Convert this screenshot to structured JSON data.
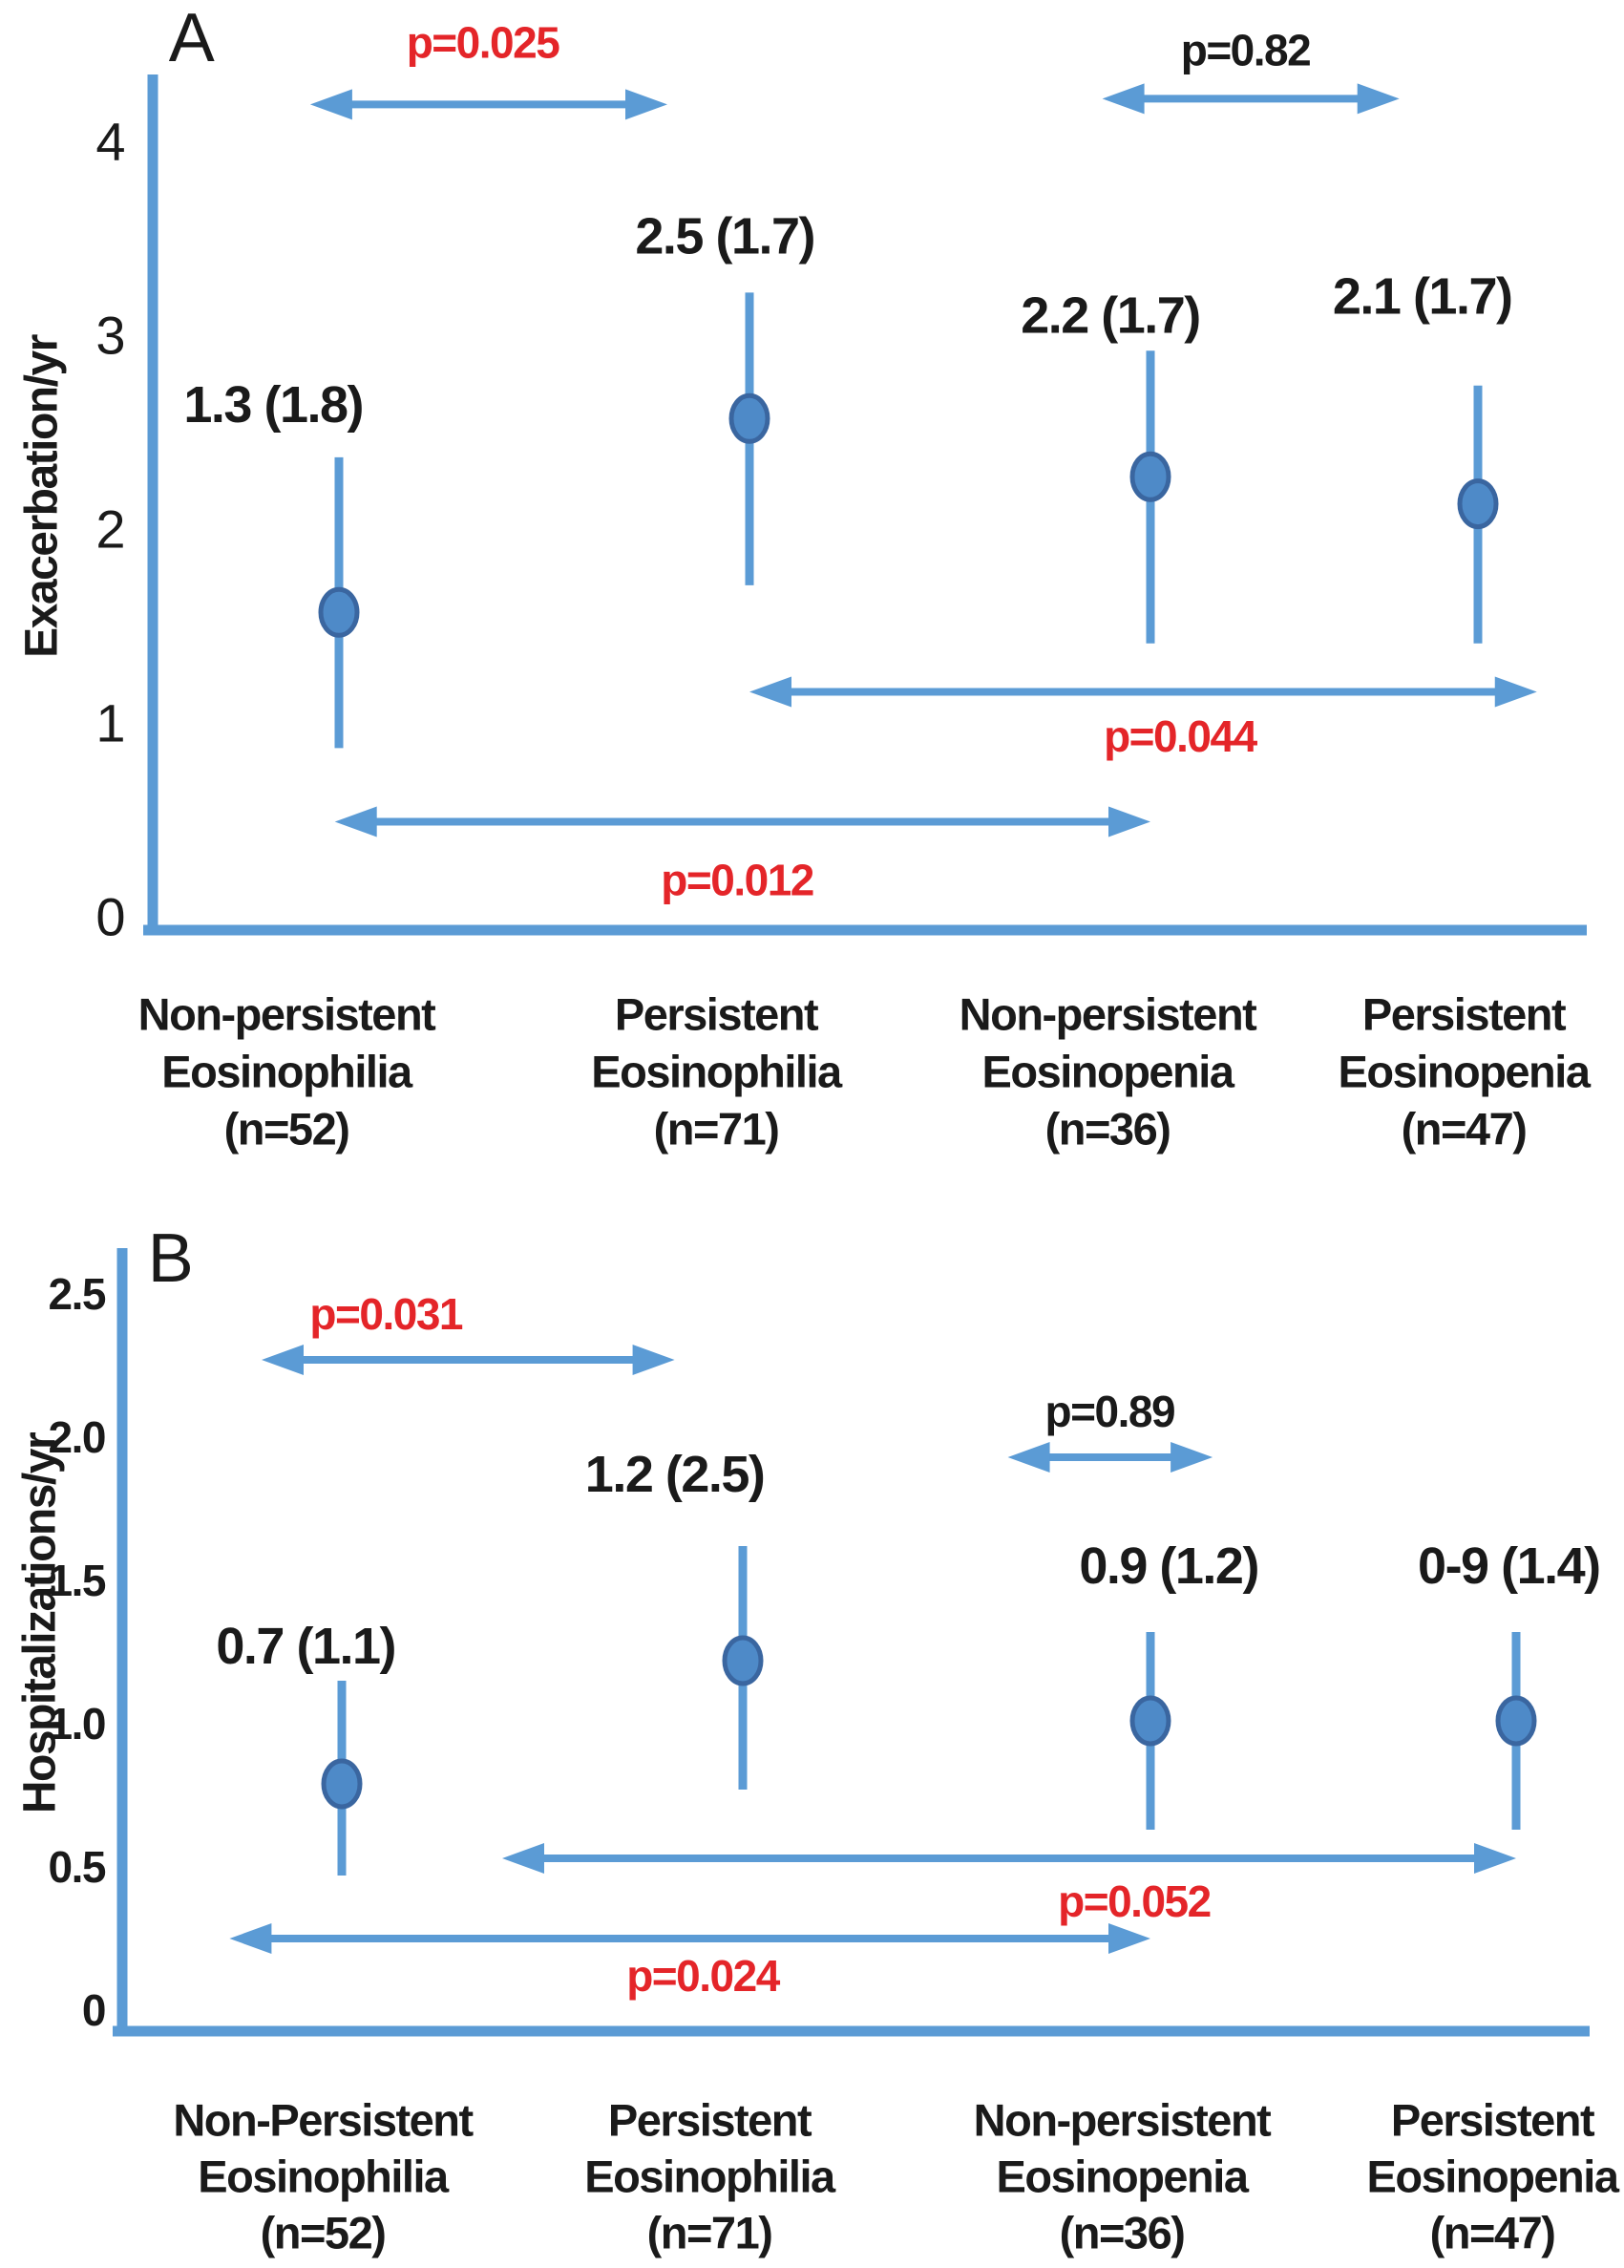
{
  "figure": {
    "background": "#ffffff",
    "colors": {
      "line_blue": "#5b9bd5",
      "marker_fill": "#4e8ac8",
      "marker_stroke": "#3a66a0",
      "significant_p": "#e42529",
      "nonsignificant_p": "#1a1a1a",
      "text": "#1a1a1a"
    }
  },
  "chart_data": [
    {
      "type": "scatter",
      "panel_label": "A",
      "ylabel": "Exacerbation/yr",
      "ylim": [
        0,
        4.35
      ],
      "grid": false,
      "legend": null,
      "yticks": [
        {
          "label": "0",
          "value": 0
        },
        {
          "label": "1",
          "value": 1
        },
        {
          "label": "2",
          "value": 2
        },
        {
          "label": "3",
          "value": 3
        },
        {
          "label": "4",
          "value": 4
        }
      ],
      "categories": [
        {
          "lines": [
            "Non-persistent",
            "Eosinophilia",
            "(n=52)"
          ]
        },
        {
          "lines": [
            "Persistent",
            "Eosinophilia",
            "(n=71)"
          ]
        },
        {
          "lines": [
            "Non-persistent",
            "Eosinopenia",
            "(n=36)"
          ]
        },
        {
          "lines": [
            "Persistent",
            "Eosinopenia",
            "(n=47)"
          ]
        }
      ],
      "points": [
        {
          "label": "1.3 (1.8)",
          "mean": 1.3,
          "sd": 1.8,
          "plot": {
            "y": 1.57,
            "lo": 0.87,
            "hi": 2.37
          },
          "label_at": {
            "x": -0.16,
            "y": 2.64
          }
        },
        {
          "label": "2.5 (1.7)",
          "mean": 2.5,
          "sd": 1.7,
          "plot": {
            "y": 2.57,
            "lo": 1.71,
            "hi": 3.22
          },
          "label_at": {
            "x": 0.94,
            "y": 3.51
          }
        },
        {
          "label": "2.2 (1.7)",
          "mean": 2.2,
          "sd": 1.7,
          "plot": {
            "y": 2.27,
            "lo": 1.41,
            "hi": 2.92
          },
          "label_at": {
            "x": 1.9,
            "y": 3.1
          }
        },
        {
          "label": "2.1 (1.7)",
          "mean": 2.1,
          "sd": 1.7,
          "plot": {
            "y": 2.13,
            "lo": 1.41,
            "hi": 2.74
          },
          "label_at": {
            "x": 2.83,
            "y": 3.2
          }
        }
      ],
      "comparisons": [
        {
          "label": "p=0.025",
          "significant": true,
          "x1": -0.07,
          "x2": 0.8,
          "y": 4.19,
          "label_at": {
            "x": 0.35,
            "y": 4.51
          }
        },
        {
          "label": "p=0.82",
          "significant": false,
          "x1": 1.88,
          "x2": 2.76,
          "y": 4.22,
          "label_at": {
            "x": 2.29,
            "y": 4.47
          }
        },
        {
          "label": "p=0.044",
          "significant": true,
          "x1": 1.0,
          "x2": 3.18,
          "y": 1.16,
          "label_at": {
            "x": 2.09,
            "y": 0.93
          }
        },
        {
          "label": "p=0.012",
          "significant": true,
          "x1": -0.01,
          "x2": 2.0,
          "y": 0.49,
          "label_at": {
            "x": 0.97,
            "y": 0.19
          }
        }
      ]
    },
    {
      "type": "scatter",
      "panel_label": "B",
      "ylabel": "Hospitalizations/yr",
      "ylim": [
        0,
        2.65
      ],
      "grid": false,
      "legend": null,
      "yticks": [
        {
          "label": "0",
          "value": 0
        },
        {
          "label": "0.5",
          "value": 0.5
        },
        {
          "label": "1.0",
          "value": 1.0
        },
        {
          "label": "1.5",
          "value": 1.5
        },
        {
          "label": "2.0",
          "value": 2.0
        },
        {
          "label": "2.5",
          "value": 2.5
        }
      ],
      "categories": [
        {
          "lines": [
            "Non-Persistent",
            "Eosinophilia",
            "(n=52)"
          ]
        },
        {
          "lines": [
            "Persistent",
            "Eosinophilia",
            "(n=71)"
          ]
        },
        {
          "lines": [
            "Non-persistent",
            "Eosinopenia",
            "(n=36)"
          ]
        },
        {
          "lines": [
            "Persistent",
            "Eosinopenia",
            "(n=47)"
          ]
        }
      ],
      "points": [
        {
          "label": "0.7 (1.1)",
          "mean": 0.7,
          "sd": 1.1,
          "plot": {
            "y": 0.79,
            "lo": 0.47,
            "hi": 1.15
          },
          "label_at": {
            "x": -0.09,
            "y": 1.27
          }
        },
        {
          "label": "1.2 (2.5)",
          "mean": 1.2,
          "sd": 2.5,
          "plot": {
            "y": 1.22,
            "lo": 0.77,
            "hi": 1.62
          },
          "label_at": {
            "x": 0.83,
            "y": 1.87
          }
        },
        {
          "label": "0.9 (1.2)",
          "mean": 0.9,
          "sd": 1.2,
          "plot": {
            "y": 1.01,
            "lo": 0.63,
            "hi": 1.32
          },
          "label_at": {
            "x": 2.05,
            "y": 1.55
          }
        },
        {
          "label": "0-9 (1.4)",
          "mean": 0.9,
          "sd": 1.4,
          "plot": {
            "y": 1.01,
            "lo": 0.63,
            "hi": 1.32
          },
          "label_at": {
            "x": 2.98,
            "y": 1.55
          }
        }
      ],
      "comparisons": [
        {
          "label": "p=0.031",
          "significant": true,
          "x1": -0.2,
          "x2": 0.83,
          "y": 2.27,
          "label_at": {
            "x": 0.11,
            "y": 2.43
          }
        },
        {
          "label": "p=0.89",
          "significant": false,
          "x1": 1.65,
          "x2": 2.17,
          "y": 1.93,
          "label_at": {
            "x": 1.9,
            "y": 2.09
          }
        },
        {
          "label": "p=0.052",
          "significant": true,
          "x1": 0.4,
          "x2": 3.0,
          "y": 0.53,
          "label_at": {
            "x": 1.96,
            "y": 0.38
          }
        },
        {
          "label": "p=0.024",
          "significant": true,
          "x1": -0.28,
          "x2": 2.0,
          "y": 0.25,
          "label_at": {
            "x": 0.9,
            "y": 0.12
          }
        }
      ]
    }
  ]
}
